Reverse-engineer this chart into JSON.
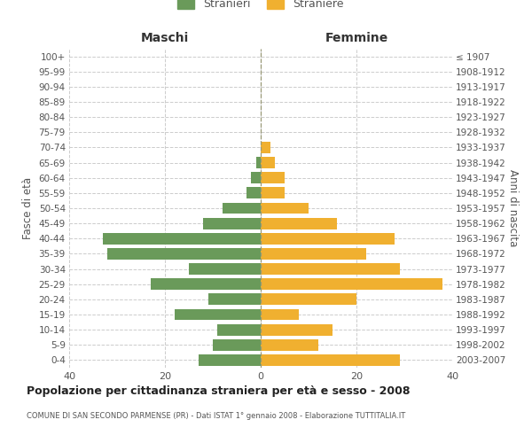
{
  "age_groups": [
    "0-4",
    "5-9",
    "10-14",
    "15-19",
    "20-24",
    "25-29",
    "30-34",
    "35-39",
    "40-44",
    "45-49",
    "50-54",
    "55-59",
    "60-64",
    "65-69",
    "70-74",
    "75-79",
    "80-84",
    "85-89",
    "90-94",
    "95-99",
    "100+"
  ],
  "birth_years": [
    "2003-2007",
    "1998-2002",
    "1993-1997",
    "1988-1992",
    "1983-1987",
    "1978-1982",
    "1973-1977",
    "1968-1972",
    "1963-1967",
    "1958-1962",
    "1953-1957",
    "1948-1952",
    "1943-1947",
    "1938-1942",
    "1933-1937",
    "1928-1932",
    "1923-1927",
    "1918-1922",
    "1913-1917",
    "1908-1912",
    "≤ 1907"
  ],
  "males": [
    13,
    10,
    9,
    18,
    11,
    23,
    15,
    32,
    33,
    12,
    8,
    3,
    2,
    1,
    0,
    0,
    0,
    0,
    0,
    0,
    0
  ],
  "females": [
    29,
    12,
    15,
    8,
    20,
    38,
    29,
    22,
    28,
    16,
    10,
    5,
    5,
    3,
    2,
    0,
    0,
    0,
    0,
    0,
    0
  ],
  "male_color": "#6a9a5a",
  "female_color": "#f0b030",
  "male_label": "Stranieri",
  "female_label": "Straniere",
  "header_left": "Maschi",
  "header_right": "Femmine",
  "ylabel_left": "Fasce di età",
  "ylabel_right": "Anni di nascita",
  "title": "Popolazione per cittadinanza straniera per età e sesso - 2008",
  "subtitle": "COMUNE DI SAN SECONDO PARMENSE (PR) - Dati ISTAT 1° gennaio 2008 - Elaborazione TUTTITALIA.IT",
  "xlim": 40,
  "grid_color": "#cccccc",
  "text_color": "#555555",
  "header_color": "#333333"
}
